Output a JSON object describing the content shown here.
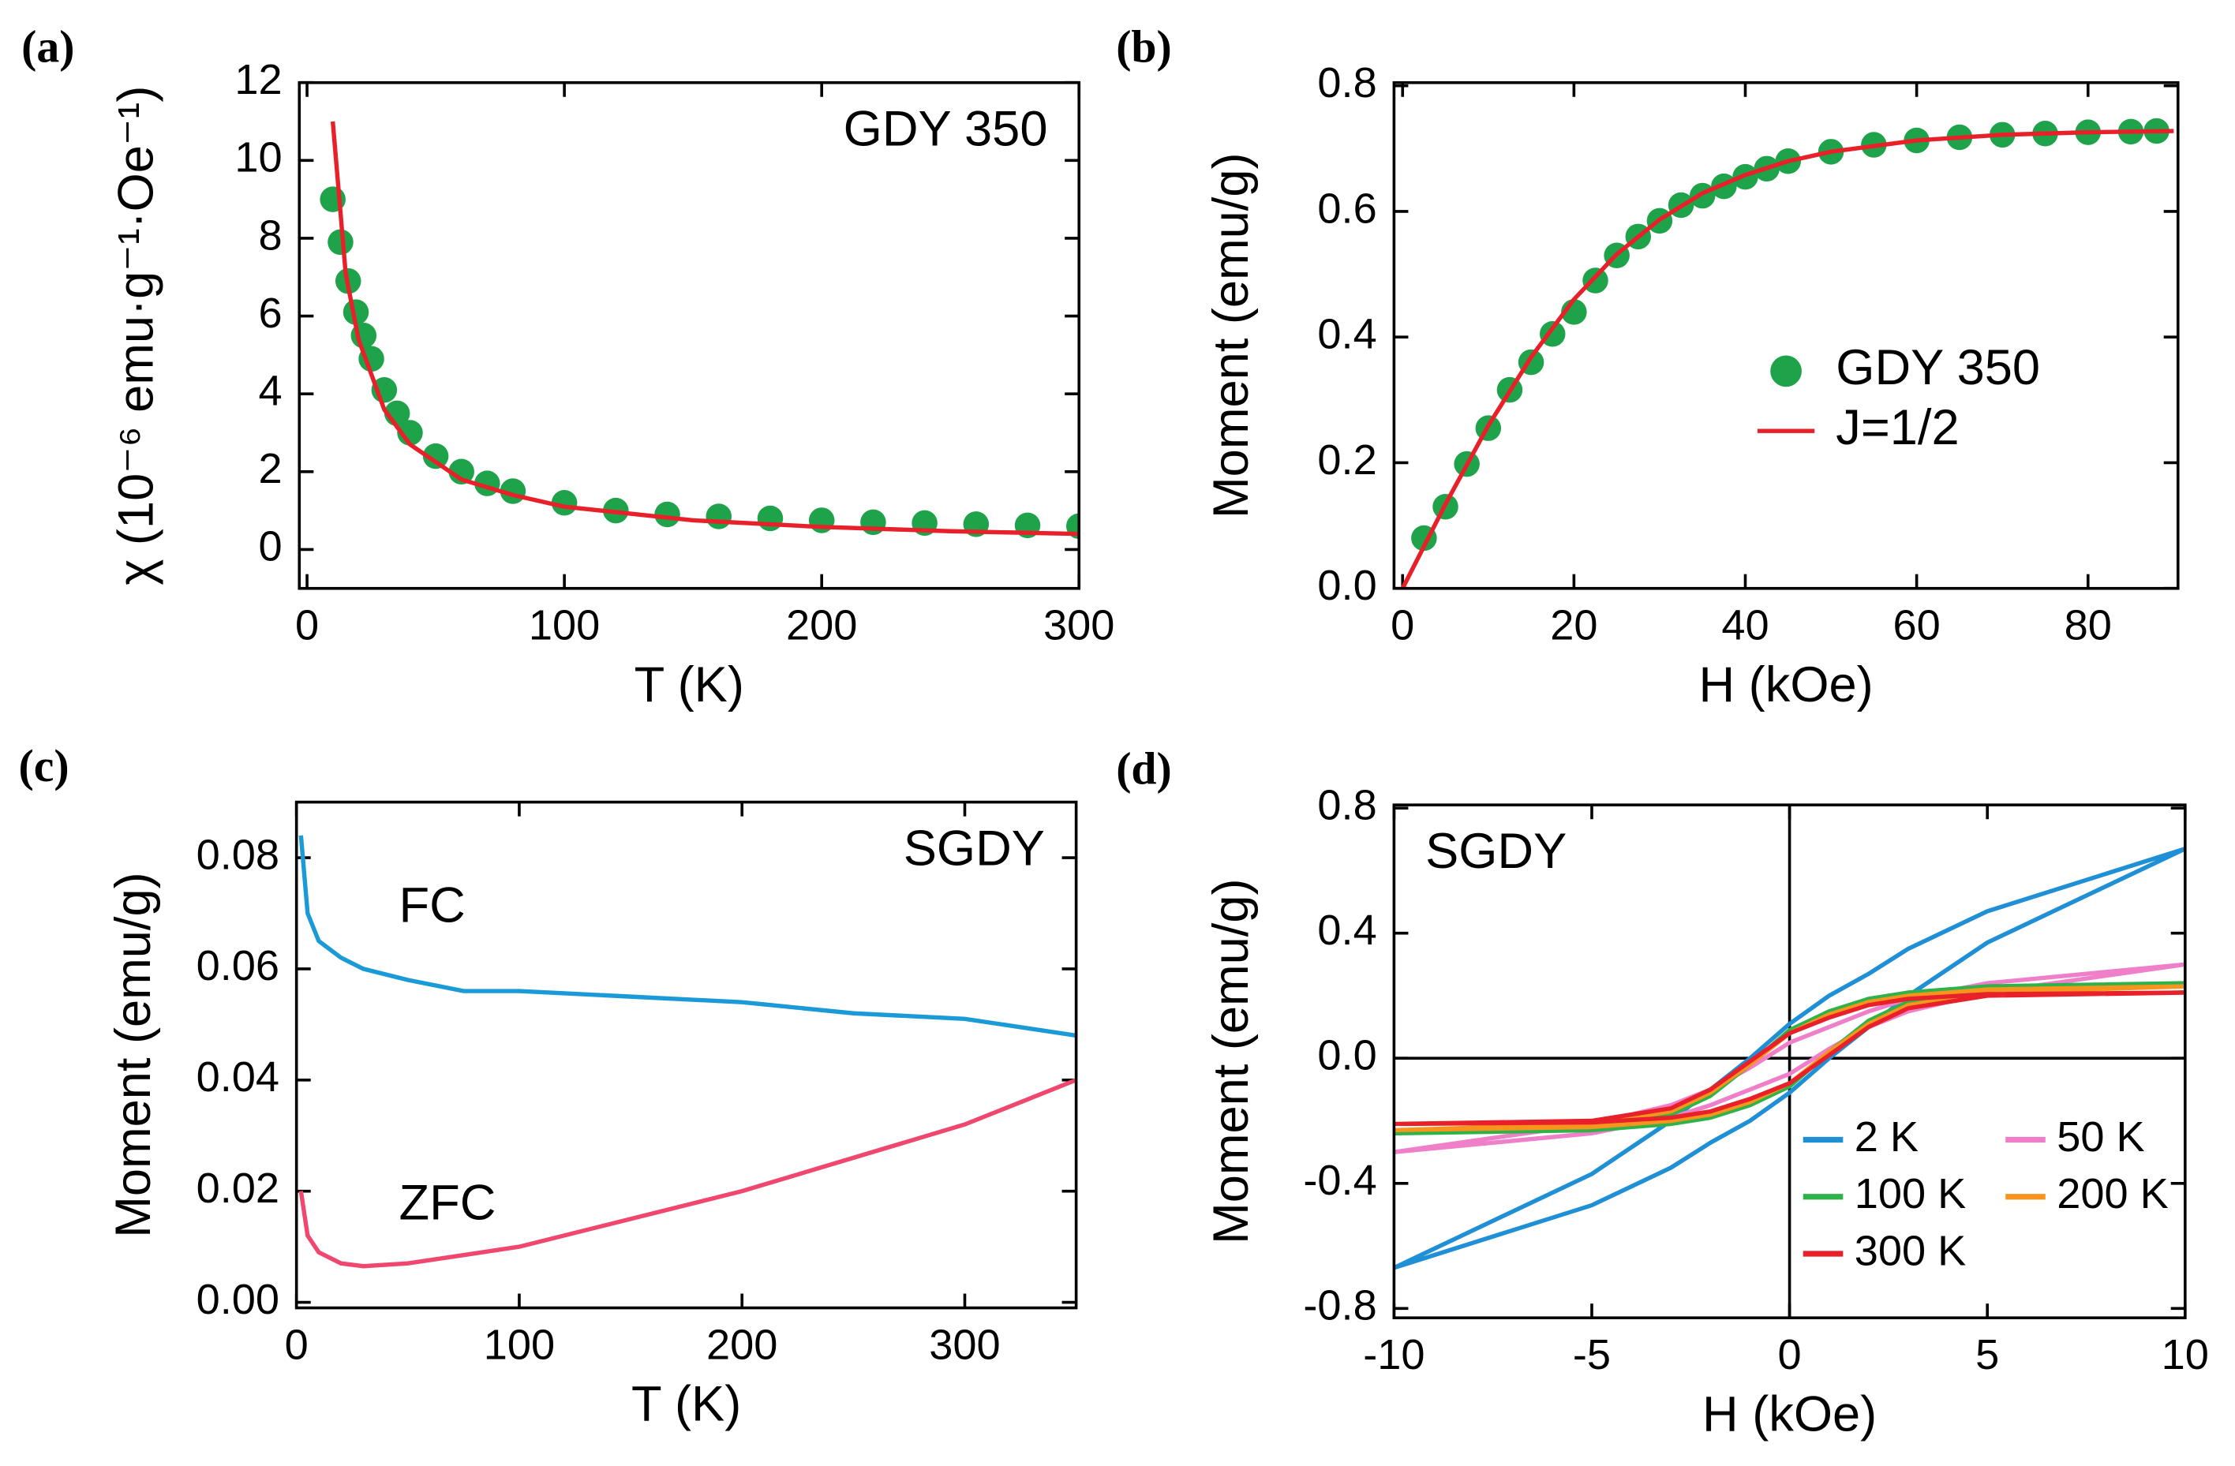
{
  "chart_data": [
    {
      "type": "scatter",
      "label": "(a)",
      "annotation": "GDY 350",
      "annotation_corner": "upper right",
      "x_label": "T (K)",
      "y_label": "χ (10⁻⁶ emu·g⁻¹·Oe⁻¹)",
      "xlim": [
        -3,
        300
      ],
      "xticks": [
        0,
        100,
        200,
        300
      ],
      "ylim": [
        -1,
        12
      ],
      "yticks": [
        0,
        2,
        4,
        6,
        8,
        10,
        12
      ],
      "series": [
        {
          "style": "points",
          "color": "#1fa34a",
          "x": [
            10,
            13,
            16,
            19,
            22,
            25,
            30,
            35,
            40,
            50,
            60,
            70,
            80,
            100,
            120,
            140,
            160,
            180,
            200,
            220,
            240,
            260,
            280,
            300
          ],
          "values": [
            9.0,
            7.9,
            6.9,
            6.1,
            5.5,
            4.9,
            4.1,
            3.5,
            3.0,
            2.4,
            2.0,
            1.7,
            1.5,
            1.2,
            1.0,
            0.9,
            0.85,
            0.8,
            0.75,
            0.7,
            0.68,
            0.65,
            0.62,
            0.6
          ]
        },
        {
          "style": "line",
          "color": "#e8202a",
          "x": [
            10,
            15,
            20,
            30,
            40,
            60,
            80,
            100,
            150,
            200,
            250,
            300
          ],
          "values": [
            11.0,
            7.1,
            5.4,
            3.6,
            2.7,
            1.8,
            1.4,
            1.1,
            0.75,
            0.58,
            0.47,
            0.4
          ]
        }
      ]
    },
    {
      "type": "scatter",
      "label": "(b)",
      "legend": "center right",
      "x_label": "H (kOe)",
      "y_label": "Moment (emu/g)",
      "xlim": [
        -1,
        90.5
      ],
      "xticks": [
        0,
        20,
        40,
        60,
        80
      ],
      "ylim": [
        0,
        0.805
      ],
      "yticks": [
        {
          "value": 0,
          "label": "0.0"
        },
        0.2,
        0.4,
        0.6,
        0.8
      ],
      "series": [
        {
          "name": "GDY 350",
          "style": "points",
          "color": "#1fa34a",
          "x": [
            2.5,
            5,
            7.5,
            10,
            12.5,
            15,
            17.5,
            20,
            22.5,
            25,
            27.5,
            30,
            32.5,
            35,
            37.5,
            40,
            42.5,
            45,
            50,
            55,
            60,
            65,
            70,
            75,
            80,
            85,
            88
          ],
          "values": [
            0.08,
            0.13,
            0.198,
            0.255,
            0.316,
            0.36,
            0.405,
            0.44,
            0.49,
            0.53,
            0.56,
            0.585,
            0.61,
            0.625,
            0.64,
            0.655,
            0.668,
            0.68,
            0.695,
            0.706,
            0.713,
            0.718,
            0.722,
            0.724,
            0.726,
            0.727,
            0.728
          ]
        },
        {
          "name": "J=1/2",
          "style": "line",
          "color": "#e8202a",
          "x": [
            0,
            5,
            10,
            15,
            20,
            25,
            30,
            35,
            40,
            45,
            50,
            60,
            70,
            80,
            90
          ],
          "values": [
            0,
            0.134,
            0.259,
            0.368,
            0.46,
            0.532,
            0.587,
            0.629,
            0.658,
            0.68,
            0.695,
            0.713,
            0.722,
            0.726,
            0.728
          ]
        }
      ]
    },
    {
      "type": "line",
      "label": "(c)",
      "annotation": "SGDY",
      "annotation_corner": "upper right",
      "legend": "inline",
      "x_label": "T (K)",
      "y_label": "Moment (emu/g)",
      "xlim": [
        0,
        350
      ],
      "xticks": [
        0,
        100,
        200,
        300
      ],
      "ylim": [
        -0.001,
        0.09
      ],
      "yticks": [
        {
          "value": 0,
          "label": "0.00"
        },
        0.02,
        0.04,
        0.06,
        0.08
      ],
      "series": [
        {
          "name": "FC",
          "color": "#1a9ad6",
          "x": [
            2,
            5,
            10,
            20,
            30,
            50,
            75,
            100,
            150,
            200,
            250,
            300,
            350
          ],
          "values": [
            0.084,
            0.07,
            0.065,
            0.062,
            0.06,
            0.058,
            0.056,
            0.056,
            0.055,
            0.054,
            0.052,
            0.051,
            0.048
          ]
        },
        {
          "name": "ZFC",
          "color": "#f0476e",
          "x": [
            2,
            5,
            10,
            20,
            30,
            50,
            75,
            100,
            150,
            200,
            250,
            300,
            350
          ],
          "values": [
            0.02,
            0.012,
            0.009,
            0.007,
            0.0065,
            0.007,
            0.0085,
            0.01,
            0.015,
            0.02,
            0.026,
            0.032,
            0.04
          ]
        }
      ]
    },
    {
      "type": "line",
      "label": "(d)",
      "annotation": "SGDY",
      "annotation_corner": "upper left",
      "legend": "lower right",
      "legend_columns": 2,
      "zero_lines": true,
      "x_label": "H (kOe)",
      "y_label": "Moment (emu/g)",
      "xlim": [
        -10,
        10
      ],
      "xticks": [
        -10,
        -5,
        0,
        5,
        10
      ],
      "ylim": [
        -0.83,
        0.81
      ],
      "yticks": [
        -0.8,
        -0.4,
        {
          "value": 0,
          "label": "0.0"
        },
        0.4,
        0.8
      ],
      "series": [
        {
          "name": "2 K",
          "color": "#1f8fd6",
          "x": [
            10,
            5,
            3,
            2,
            1,
            0,
            -1,
            -2,
            -3,
            -5,
            -10,
            -10,
            -5,
            -3,
            -2,
            -1,
            0,
            1,
            2,
            3,
            5,
            10
          ],
          "values": [
            0.67,
            0.47,
            0.35,
            0.27,
            0.2,
            0.11,
            0.0,
            -0.1,
            -0.2,
            -0.37,
            -0.67,
            -0.67,
            -0.47,
            -0.35,
            -0.27,
            -0.2,
            -0.11,
            0.0,
            0.1,
            0.2,
            0.37,
            0.67
          ]
        },
        {
          "name": "50 K",
          "color": "#f07fc9",
          "x": [
            10,
            5,
            3,
            2,
            1,
            0,
            -1,
            -2,
            -3,
            -5,
            -10,
            -10,
            -5,
            -3,
            -2,
            -1,
            0,
            1,
            2,
            3,
            5,
            10
          ],
          "values": [
            0.3,
            0.24,
            0.19,
            0.15,
            0.1,
            0.05,
            -0.03,
            -0.1,
            -0.15,
            -0.21,
            -0.3,
            -0.3,
            -0.24,
            -0.19,
            -0.15,
            -0.1,
            -0.05,
            0.03,
            0.1,
            0.15,
            0.21,
            0.3
          ]
        },
        {
          "name": "100 K",
          "color": "#2eb24a",
          "x": [
            10,
            5,
            3,
            2,
            1,
            0,
            -1,
            -2,
            -3,
            -5,
            -10,
            -10,
            -5,
            -3,
            -2,
            -1,
            0,
            1,
            2,
            3,
            5,
            10
          ],
          "values": [
            0.24,
            0.23,
            0.21,
            0.19,
            0.15,
            0.09,
            -0.02,
            -0.12,
            -0.18,
            -0.22,
            -0.24,
            -0.24,
            -0.23,
            -0.21,
            -0.19,
            -0.15,
            -0.09,
            0.02,
            0.12,
            0.18,
            0.22,
            0.24
          ]
        },
        {
          "name": "200 K",
          "color": "#f7941d",
          "x": [
            10,
            5,
            3,
            2,
            1,
            0,
            -1,
            -2,
            -3,
            -5,
            -10,
            -10,
            -5,
            -3,
            -2,
            -1,
            0,
            1,
            2,
            3,
            5,
            10
          ],
          "values": [
            0.23,
            0.22,
            0.2,
            0.18,
            0.14,
            0.08,
            -0.02,
            -0.11,
            -0.17,
            -0.21,
            -0.23,
            -0.23,
            -0.22,
            -0.2,
            -0.18,
            -0.14,
            -0.08,
            0.02,
            0.11,
            0.17,
            0.21,
            0.23
          ]
        },
        {
          "name": "300 K",
          "color": "#e8202a",
          "x": [
            10,
            5,
            3,
            2,
            1,
            0,
            -1,
            -2,
            -3,
            -5,
            -10,
            -10,
            -5,
            -3,
            -2,
            -1,
            0,
            1,
            2,
            3,
            5,
            10
          ],
          "values": [
            0.21,
            0.205,
            0.19,
            0.17,
            0.13,
            0.08,
            -0.01,
            -0.1,
            -0.16,
            -0.2,
            -0.21,
            -0.21,
            -0.205,
            -0.19,
            -0.17,
            -0.13,
            -0.08,
            0.01,
            0.1,
            0.16,
            0.2,
            0.21
          ]
        }
      ]
    }
  ]
}
